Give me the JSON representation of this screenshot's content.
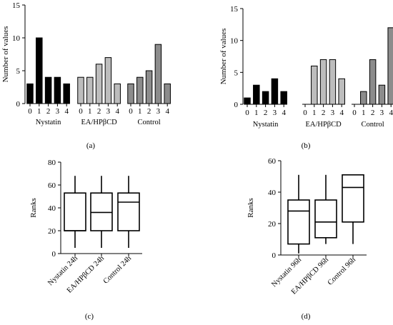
{
  "chart_data": [
    {
      "id": "a",
      "type": "bar",
      "panel_label": "(a)",
      "ylabel": "Number of values",
      "ylim": [
        0,
        15
      ],
      "yticks": [
        0,
        5,
        10,
        15
      ],
      "tick_labels": [
        "0",
        "1",
        "2",
        "3",
        "4"
      ],
      "groups": [
        {
          "name": "Nystatin",
          "values": [
            3,
            10,
            4,
            4,
            3
          ],
          "color": "#000000"
        },
        {
          "name": "EA/HPβCD",
          "values": [
            4,
            4,
            6,
            7,
            3
          ],
          "color": "#bdbdbd"
        },
        {
          "name": "Control",
          "values": [
            3,
            4,
            5,
            9,
            3
          ],
          "color": "#8c8c8c"
        }
      ]
    },
    {
      "id": "b",
      "type": "bar",
      "panel_label": "(b)",
      "ylabel": "Number of values",
      "ylim": [
        0,
        15
      ],
      "yticks": [
        0,
        5,
        10,
        15
      ],
      "tick_labels": [
        "0",
        "1",
        "2",
        "3",
        "4"
      ],
      "groups": [
        {
          "name": "Nystatin",
          "values": [
            1,
            3,
            2,
            4,
            2
          ],
          "color": "#000000"
        },
        {
          "name": "EA/HPβCD",
          "values": [
            0,
            6,
            7,
            7,
            4
          ],
          "color": "#bdbdbd"
        },
        {
          "name": "Control",
          "values": [
            0,
            2,
            7,
            3,
            12
          ],
          "color": "#8c8c8c"
        }
      ]
    },
    {
      "id": "c",
      "type": "box",
      "panel_label": "(c)",
      "ylabel": "Ranks",
      "ylim": [
        0,
        80
      ],
      "yticks": [
        0,
        20,
        40,
        60,
        80
      ],
      "boxes": [
        {
          "name": "Nystatin 24h",
          "min": 5,
          "q1": 20,
          "median": 20,
          "q3": 53,
          "max": 68
        },
        {
          "name": "EA/HPβCD 24h",
          "min": 5,
          "q1": 20,
          "median": 36,
          "q3": 53,
          "max": 68
        },
        {
          "name": "Control 24h",
          "min": 5,
          "q1": 20,
          "median": 45,
          "q3": 53,
          "max": 68
        }
      ]
    },
    {
      "id": "d",
      "type": "box",
      "panel_label": "(d)",
      "ylabel": "Ranks",
      "ylim": [
        0,
        60
      ],
      "yticks": [
        0,
        20,
        40,
        60
      ],
      "boxes": [
        {
          "name": "Nystatin 96h",
          "min": 1,
          "q1": 7,
          "median": 28,
          "q3": 35,
          "max": 51
        },
        {
          "name": "EA/HPβCD 96h",
          "min": 7,
          "q1": 11,
          "median": 21,
          "q3": 35,
          "max": 51
        },
        {
          "name": "Control 96h",
          "min": 7,
          "q1": 21,
          "median": 43,
          "q3": 51,
          "max": 51
        }
      ]
    }
  ]
}
